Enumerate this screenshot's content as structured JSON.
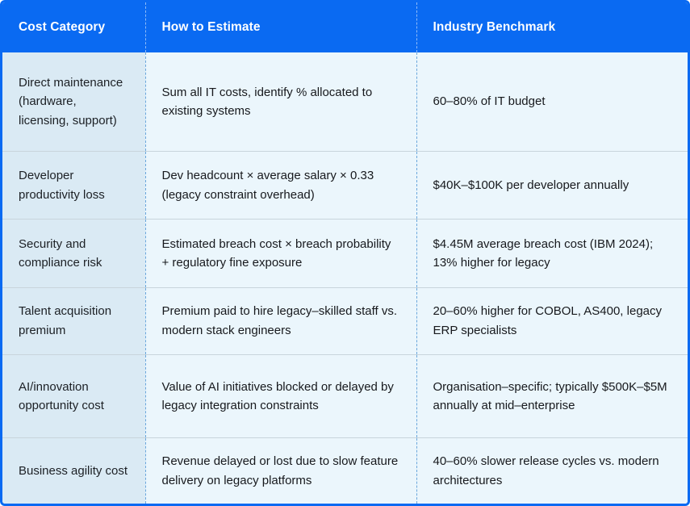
{
  "table": {
    "columns": [
      {
        "label": "Cost Category"
      },
      {
        "label": "How to Estimate"
      },
      {
        "label": "Industry Benchmark"
      }
    ],
    "rows": [
      {
        "category": "Direct maintenance (hardware, licensing, support)",
        "estimate": "Sum all IT costs, identify % allocated to existing systems",
        "benchmark": "60–80% of IT budget"
      },
      {
        "category": "Developer productivity loss",
        "estimate": "Dev headcount × average salary × 0.33 (legacy constraint overhead)",
        "benchmark": "$40K–$100K per developer annually"
      },
      {
        "category": "Security and compliance risk",
        "estimate": "Estimated breach cost × breach probability + regulatory fine exposure",
        "benchmark": "$4.45M average breach cost (IBM 2024); 13% higher for legacy"
      },
      {
        "category": "Talent acquisition premium",
        "estimate": "Premium paid to hire legacy–skilled staff vs. modern stack engineers",
        "benchmark": "20–60% higher for COBOL, AS400, legacy ERP specialists"
      },
      {
        "category": "AI/innovation opportunity cost",
        "estimate": "Value of AI initiatives blocked or delayed by legacy integration constraints",
        "benchmark": "Organisation–specific; typically $500K–$5M annually at mid–enterprise"
      },
      {
        "category": "Business agility cost",
        "estimate": "Revenue delayed or lost due to slow feature delivery on legacy platforms",
        "benchmark": "40–60% slower release cycles vs. modern architectures"
      }
    ]
  },
  "colors": {
    "header_bg": "#0a6af2",
    "outer_border": "#0a6af2",
    "category_column_bg": "#daeaf4",
    "cell_bg": "#ebf6fc",
    "row_divider": "#c8d4dc",
    "column_divider_body": "#6ba7dc",
    "column_divider_header": "rgba(255,255,255,0.55)",
    "header_text": "#ffffff",
    "body_text": "#17191d"
  }
}
